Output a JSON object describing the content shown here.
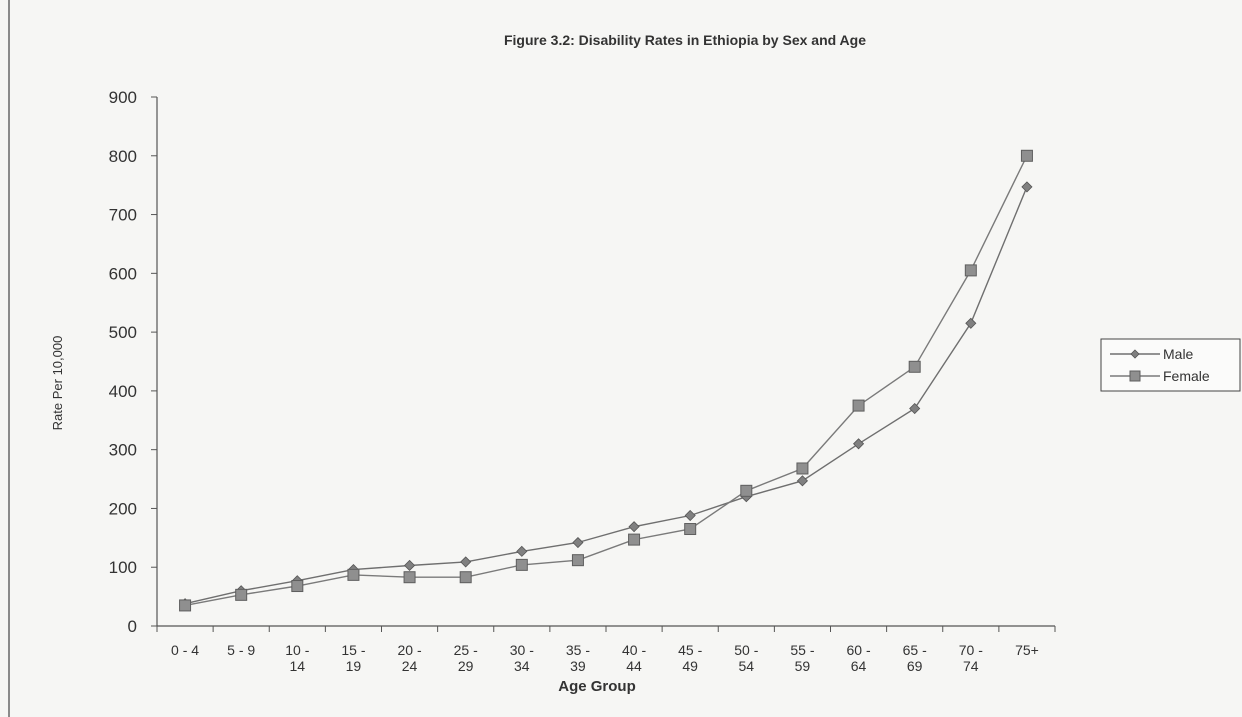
{
  "chart_data": {
    "type": "line",
    "title": "Figure 3.2: Disability Rates in Ethiopia by Sex and Age",
    "xlabel": "Age Group",
    "ylabel": "Rate Per 10,000",
    "ylim": [
      0,
      900
    ],
    "yticks": [
      "0",
      "100",
      "200",
      "300",
      "400",
      "500",
      "600",
      "700",
      "800",
      "900"
    ],
    "grid": false,
    "legend_position": "right",
    "categories": [
      [
        "0 - 4"
      ],
      [
        "5 - 9"
      ],
      [
        "10 -",
        "14"
      ],
      [
        "15 -",
        "19"
      ],
      [
        "20 -",
        "24"
      ],
      [
        "25 -",
        "29"
      ],
      [
        "30 -",
        "34"
      ],
      [
        "35 -",
        "39"
      ],
      [
        "40 -",
        "44"
      ],
      [
        "45 -",
        "49"
      ],
      [
        "50 -",
        "54"
      ],
      [
        "55 -",
        "59"
      ],
      [
        "60 -",
        "64"
      ],
      [
        "65 -",
        "69"
      ],
      [
        "70 -",
        "74"
      ],
      [
        "75+"
      ]
    ],
    "series": [
      {
        "name": "Male",
        "marker": "diamond",
        "color": "#6f6f6f",
        "values": [
          38,
          60,
          77,
          96,
          103,
          109,
          127,
          142,
          169,
          188,
          220,
          247,
          310,
          370,
          515,
          747
        ]
      },
      {
        "name": "Female",
        "marker": "square",
        "color": "#7a7a7a",
        "values": [
          35,
          53,
          68,
          87,
          83,
          83,
          104,
          112,
          147,
          165,
          230,
          268,
          375,
          441,
          605,
          800
        ]
      }
    ]
  }
}
